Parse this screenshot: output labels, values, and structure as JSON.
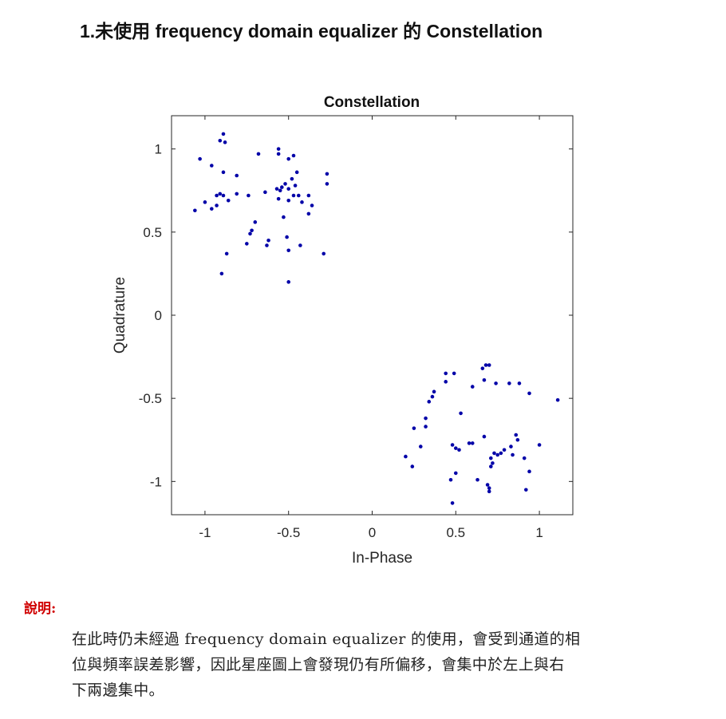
{
  "document": {
    "heading": "1.未使用 frequency domain equalizer 的 Constellation",
    "note_label": "說明:",
    "note_lines": [
      "在此時仍未經過 frequency domain equalizer 的使用，會受到通道的相",
      "位與頻率誤差影響，因此星座圖上會發現仍有所偏移，會集中於左上與右",
      "下兩邊集中。"
    ]
  },
  "chart_data": {
    "type": "scatter",
    "title": "Constellation",
    "xlabel": "In-Phase",
    "ylabel": "Quadrature",
    "xlim": [
      -1.2,
      1.2
    ],
    "ylim": [
      -1.2,
      1.2
    ],
    "xticks": [
      -1,
      -0.5,
      0,
      0.5,
      1
    ],
    "xtick_labels": [
      "-1",
      "-0.5",
      "0",
      "0.5",
      "1"
    ],
    "yticks": [
      1,
      0.5,
      0,
      -0.5,
      -1
    ],
    "ytick_labels": [
      "1",
      "0.5",
      "0",
      "-0.5",
      "-1"
    ],
    "grid": false,
    "marker_color": "#0000a8",
    "series": [
      {
        "points": [
          [
            -0.89,
            1.09
          ],
          [
            -0.91,
            1.05
          ],
          [
            -0.88,
            1.04
          ],
          [
            -0.68,
            0.97
          ],
          [
            -0.56,
            1.0
          ],
          [
            -0.56,
            0.97
          ],
          [
            -0.5,
            0.94
          ],
          [
            -0.47,
            0.96
          ],
          [
            -1.03,
            0.94
          ],
          [
            -0.96,
            0.9
          ],
          [
            -0.89,
            0.86
          ],
          [
            -0.81,
            0.84
          ],
          [
            -0.45,
            0.86
          ],
          [
            -0.27,
            0.85
          ],
          [
            -0.48,
            0.82
          ],
          [
            -0.52,
            0.79
          ],
          [
            -0.54,
            0.77
          ],
          [
            -0.46,
            0.78
          ],
          [
            -0.27,
            0.79
          ],
          [
            -0.57,
            0.76
          ],
          [
            -0.64,
            0.74
          ],
          [
            -0.55,
            0.75
          ],
          [
            -0.5,
            0.76
          ],
          [
            -0.91,
            0.73
          ],
          [
            -0.93,
            0.72
          ],
          [
            -0.89,
            0.72
          ],
          [
            -0.81,
            0.73
          ],
          [
            -0.74,
            0.72
          ],
          [
            -0.47,
            0.72
          ],
          [
            -0.44,
            0.72
          ],
          [
            -0.38,
            0.72
          ],
          [
            -1.0,
            0.68
          ],
          [
            -0.86,
            0.69
          ],
          [
            -0.56,
            0.7
          ],
          [
            -0.5,
            0.69
          ],
          [
            -0.42,
            0.68
          ],
          [
            -0.36,
            0.66
          ],
          [
            -0.96,
            0.64
          ],
          [
            -0.93,
            0.66
          ],
          [
            -1.06,
            0.63
          ],
          [
            -0.38,
            0.61
          ],
          [
            -0.53,
            0.59
          ],
          [
            -0.7,
            0.56
          ],
          [
            -0.72,
            0.51
          ],
          [
            -0.73,
            0.49
          ],
          [
            -0.51,
            0.47
          ],
          [
            -0.62,
            0.45
          ],
          [
            -0.75,
            0.43
          ],
          [
            -0.63,
            0.42
          ],
          [
            -0.43,
            0.42
          ],
          [
            -0.5,
            0.39
          ],
          [
            -0.87,
            0.37
          ],
          [
            -0.29,
            0.37
          ],
          [
            -0.9,
            0.25
          ],
          [
            -0.5,
            0.2
          ],
          [
            0.68,
            -0.3
          ],
          [
            0.7,
            -0.3
          ],
          [
            0.66,
            -0.32
          ],
          [
            0.44,
            -0.35
          ],
          [
            0.49,
            -0.35
          ],
          [
            0.44,
            -0.4
          ],
          [
            0.67,
            -0.39
          ],
          [
            0.74,
            -0.41
          ],
          [
            0.82,
            -0.41
          ],
          [
            0.88,
            -0.41
          ],
          [
            0.6,
            -0.43
          ],
          [
            0.37,
            -0.46
          ],
          [
            0.36,
            -0.49
          ],
          [
            0.34,
            -0.52
          ],
          [
            1.11,
            -0.51
          ],
          [
            0.94,
            -0.47
          ],
          [
            0.53,
            -0.59
          ],
          [
            0.32,
            -0.62
          ],
          [
            0.32,
            -0.67
          ],
          [
            0.25,
            -0.68
          ],
          [
            0.67,
            -0.73
          ],
          [
            0.86,
            -0.72
          ],
          [
            0.87,
            -0.75
          ],
          [
            0.58,
            -0.77
          ],
          [
            0.6,
            -0.77
          ],
          [
            0.48,
            -0.78
          ],
          [
            0.5,
            -0.8
          ],
          [
            1.0,
            -0.78
          ],
          [
            0.29,
            -0.79
          ],
          [
            0.52,
            -0.81
          ],
          [
            0.83,
            -0.79
          ],
          [
            0.79,
            -0.81
          ],
          [
            0.73,
            -0.83
          ],
          [
            0.75,
            -0.84
          ],
          [
            0.77,
            -0.83
          ],
          [
            0.84,
            -0.84
          ],
          [
            0.71,
            -0.86
          ],
          [
            0.2,
            -0.85
          ],
          [
            0.72,
            -0.89
          ],
          [
            0.91,
            -0.86
          ],
          [
            0.71,
            -0.91
          ],
          [
            0.24,
            -0.91
          ],
          [
            0.94,
            -0.94
          ],
          [
            0.5,
            -0.95
          ],
          [
            0.47,
            -0.99
          ],
          [
            0.63,
            -0.99
          ],
          [
            0.69,
            -1.02
          ],
          [
            0.7,
            -1.04
          ],
          [
            0.92,
            -1.05
          ],
          [
            0.7,
            -1.06
          ],
          [
            0.48,
            -1.13
          ]
        ]
      }
    ]
  }
}
